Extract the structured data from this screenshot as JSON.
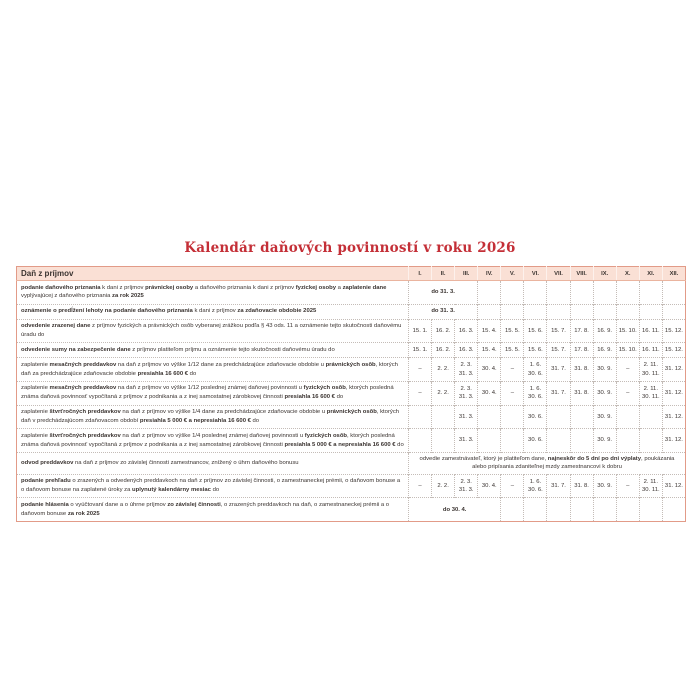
{
  "title": "Kalendár daňových povinností v roku 2026",
  "accent_color": "#c42f37",
  "header_bg_color": "#fae0d5",
  "border_color": "#e29b88",
  "table": {
    "section_header": "Daň z príjmov",
    "months": [
      "I.",
      "II.",
      "III.",
      "IV.",
      "V.",
      "VI.",
      "VII.",
      "VIII.",
      "IX.",
      "X.",
      "XI.",
      "XII."
    ],
    "rows": [
      {
        "desc": [
          {
            "t": "podanie daňového priznania",
            "b": true
          },
          {
            "t": " k dani z príjmov ",
            "b": false
          },
          {
            "t": "právnickej osoby",
            "b": true
          },
          {
            "t": " a daňového priznania k dani z príjmov ",
            "b": false
          },
          {
            "t": "fyzickej osoby",
            "b": true
          },
          {
            "t": " a ",
            "b": false
          },
          {
            "t": "zaplatenie dane",
            "b": true
          },
          {
            "t": " vyplývajúcej z daňového priznania ",
            "b": false
          },
          {
            "t": "za rok 2025",
            "b": true
          }
        ],
        "value": {
          "kind": "span",
          "cols": 3,
          "bold": true,
          "segments": [
            {
              "t": "do 31. 3.",
              "b": true
            }
          ]
        }
      },
      {
        "desc": [
          {
            "t": "oznámenie o predĺžení lehoty na podanie daňového priznania",
            "b": true
          },
          {
            "t": " k dani z príjmov ",
            "b": false
          },
          {
            "t": "za zdaňovacie obdobie 2025",
            "b": true
          }
        ],
        "value": {
          "kind": "span",
          "cols": 3,
          "bold": true,
          "segments": [
            {
              "t": "do 31. 3.",
              "b": true
            }
          ]
        }
      },
      {
        "desc": [
          {
            "t": "odvedenie zrazenej dane",
            "b": true
          },
          {
            "t": " z príjmov fyzických a právnických osôb vyberanej zrážkou podľa § 43 ods. 11 a oznámenie tejto skutočnosti daňovému úradu do",
            "b": false
          }
        ],
        "value": {
          "kind": "months",
          "cells": [
            [
              "15. 1."
            ],
            [
              "16. 2."
            ],
            [
              "16. 3."
            ],
            [
              "15. 4."
            ],
            [
              "15. 5."
            ],
            [
              "15. 6."
            ],
            [
              "15. 7."
            ],
            [
              "17. 8."
            ],
            [
              "16. 9."
            ],
            [
              "15. 10."
            ],
            [
              "16. 11."
            ],
            [
              "15. 12."
            ]
          ]
        }
      },
      {
        "desc": [
          {
            "t": "odvedenie sumy na zabezpečenie dane",
            "b": true
          },
          {
            "t": " z príjmov platiteľom príjmu a oznámenie tejto skutočnosti daňovému úradu do",
            "b": false
          }
        ],
        "value": {
          "kind": "months",
          "cells": [
            [
              "15. 1."
            ],
            [
              "16. 2."
            ],
            [
              "16. 3."
            ],
            [
              "15. 4."
            ],
            [
              "15. 5."
            ],
            [
              "15. 6."
            ],
            [
              "15. 7."
            ],
            [
              "17. 8."
            ],
            [
              "16. 9."
            ],
            [
              "15. 10."
            ],
            [
              "16. 11."
            ],
            [
              "15. 12."
            ]
          ]
        }
      },
      {
        "desc": [
          {
            "t": "zaplatenie ",
            "b": false
          },
          {
            "t": "mesačných preddavkov",
            "b": true
          },
          {
            "t": " na daň z príjmov vo výške 1/12 dane za predchádzajúce zdaňovacie obdobie u ",
            "b": false
          },
          {
            "t": "právnických osôb",
            "b": true
          },
          {
            "t": ", ktorých daň za predchádzajúce zdaňovacie obdobie ",
            "b": false
          },
          {
            "t": "presiahla 16 600 €",
            "b": true
          },
          {
            "t": " do",
            "b": false
          }
        ],
        "value": {
          "kind": "months",
          "cells": [
            [
              "–"
            ],
            [
              "2. 2."
            ],
            [
              "2. 3.",
              "31. 3."
            ],
            [
              "30. 4."
            ],
            [
              "–"
            ],
            [
              "1. 6.",
              "30. 6."
            ],
            [
              "31. 7."
            ],
            [
              "31. 8."
            ],
            [
              "30. 9."
            ],
            [
              "–"
            ],
            [
              "2. 11.",
              "30. 11."
            ],
            [
              "31. 12."
            ]
          ]
        }
      },
      {
        "desc": [
          {
            "t": "zaplatenie ",
            "b": false
          },
          {
            "t": "mesačných preddavkov",
            "b": true
          },
          {
            "t": " na daň z príjmov vo výške 1/12 poslednej známej daňovej povinnosti u ",
            "b": false
          },
          {
            "t": "fyzických osôb",
            "b": true
          },
          {
            "t": ", ktorých posledná známa daňová povinnosť vypočítaná z príjmov z podnikania a z inej samostatnej zárobkovej činnosti ",
            "b": false
          },
          {
            "t": "presiahla 16 600 €",
            "b": true
          },
          {
            "t": " do",
            "b": false
          }
        ],
        "value": {
          "kind": "months",
          "cells": [
            [
              "–"
            ],
            [
              "2. 2."
            ],
            [
              "2. 3.",
              "31. 3."
            ],
            [
              "30. 4."
            ],
            [
              "–"
            ],
            [
              "1. 6.",
              "30. 6."
            ],
            [
              "31. 7."
            ],
            [
              "31. 8."
            ],
            [
              "30. 9."
            ],
            [
              "–"
            ],
            [
              "2. 11.",
              "30. 11."
            ],
            [
              "31. 12."
            ]
          ]
        }
      },
      {
        "desc": [
          {
            "t": "zaplatenie ",
            "b": false
          },
          {
            "t": "štvrťročných preddavkov",
            "b": true
          },
          {
            "t": " na daň z príjmov vo výške 1/4 dane za predchádzajúce zdaňovacie obdobie u ",
            "b": false
          },
          {
            "t": "právnických osôb",
            "b": true
          },
          {
            "t": ", ktorých daň v predchádzajúcom zdaňovacom období ",
            "b": false
          },
          {
            "t": "presiahla 5 000 € a nepresiahla 16 600 €",
            "b": true
          },
          {
            "t": " do",
            "b": false
          }
        ],
        "value": {
          "kind": "months",
          "cells": [
            [],
            [],
            [
              "31. 3."
            ],
            [],
            [],
            [
              "30. 6."
            ],
            [],
            [],
            [
              "30. 9."
            ],
            [],
            [],
            [
              "31. 12."
            ]
          ]
        }
      },
      {
        "desc": [
          {
            "t": "zaplatenie ",
            "b": false
          },
          {
            "t": "štvrťročných preddavkov",
            "b": true
          },
          {
            "t": " na daň z príjmov vo výške 1/4 poslednej známej daňovej povinnosti u ",
            "b": false
          },
          {
            "t": "fyzických osôb",
            "b": true
          },
          {
            "t": ", ktorých posledná známa daňová povinnosť vypočítaná z príjmov z podnikania a z inej samostatnej zárobkovej činnosti ",
            "b": false
          },
          {
            "t": "presiahla 5 000 € a nepresiahla 16 600 €",
            "b": true
          },
          {
            "t": " do",
            "b": false
          }
        ],
        "value": {
          "kind": "months",
          "cells": [
            [],
            [],
            [
              "31. 3."
            ],
            [],
            [],
            [
              "30. 6."
            ],
            [],
            [],
            [
              "30. 9."
            ],
            [],
            [],
            [
              "31. 12."
            ]
          ]
        }
      },
      {
        "desc": [
          {
            "t": "odvod preddavkov",
            "b": true
          },
          {
            "t": " na daň z príjmov zo závislej činnosti zamestnancov, znížený o úhrn daňového bonusu",
            "b": false
          }
        ],
        "value": {
          "kind": "span",
          "cols": 12,
          "bold": false,
          "segments": [
            {
              "t": "odvedie zamestnávateľ, ktorý je platiteľom dane, ",
              "b": false
            },
            {
              "t": "najneskôr do 5 dní po dni výplaty",
              "b": true
            },
            {
              "t": ", poukázania alebo pripísania zdaniteľnej mzdy zamestnancovi k dobru",
              "b": false
            }
          ]
        }
      },
      {
        "desc": [
          {
            "t": "podanie prehľadu",
            "b": true
          },
          {
            "t": " o zrazených a odvedených preddavkoch na daň z príjmov zo závislej činnosti, o zamestnaneckej prémii, o daňovom bonuse a o daňovom bonuse na zaplatené úroky za ",
            "b": false
          },
          {
            "t": "uplynutý kalendárny mesiac",
            "b": true
          },
          {
            "t": " do",
            "b": false
          }
        ],
        "value": {
          "kind": "months",
          "cells": [
            [
              "–"
            ],
            [
              "2. 2."
            ],
            [
              "2. 3.",
              "31. 3."
            ],
            [
              "30. 4."
            ],
            [
              "–"
            ],
            [
              "1. 6.",
              "30. 6."
            ],
            [
              "31. 7."
            ],
            [
              "31. 8."
            ],
            [
              "30. 9."
            ],
            [
              "–"
            ],
            [
              "2. 11.",
              "30. 11."
            ],
            [
              "31. 12."
            ]
          ]
        }
      },
      {
        "desc": [
          {
            "t": "podanie hlásenia",
            "b": true
          },
          {
            "t": " o vyúčtovaní dane a o úhrne príjmov ",
            "b": false
          },
          {
            "t": "zo závislej činnosti",
            "b": true
          },
          {
            "t": ", o zrazených preddavkoch na daň, o zamestnaneckej prémii a o daňovom bonuse ",
            "b": false
          },
          {
            "t": "za rok 2025",
            "b": true
          }
        ],
        "value": {
          "kind": "span",
          "cols": 4,
          "bold": true,
          "segments": [
            {
              "t": "do 30. 4.",
              "b": true
            }
          ]
        }
      }
    ]
  }
}
